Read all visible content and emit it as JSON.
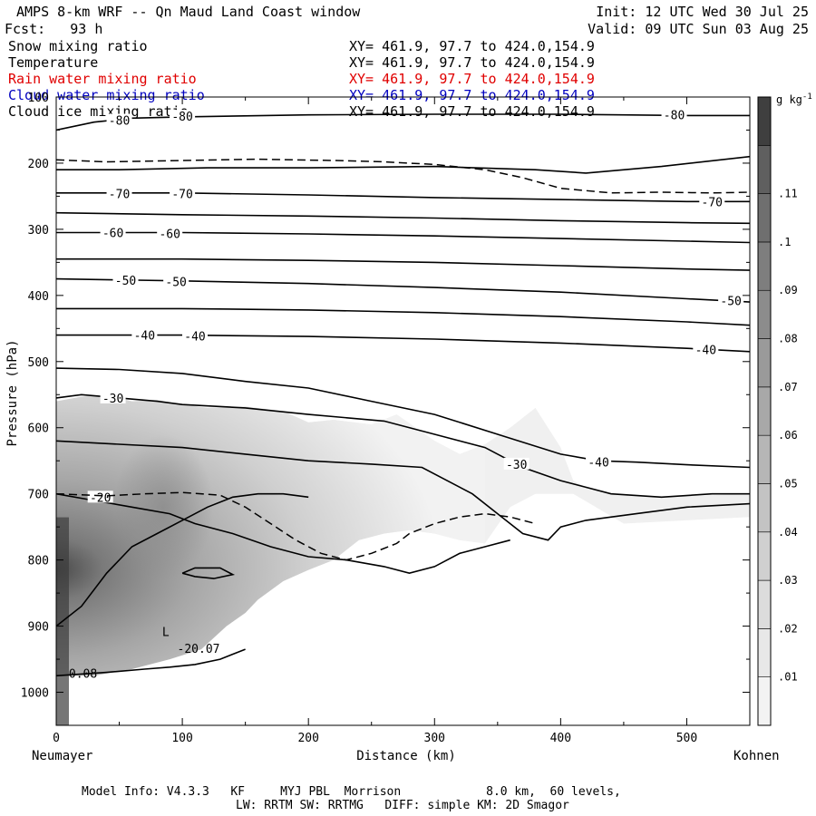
{
  "header": {
    "title": "AMPS 8-km WRF -- Qn Maud Land Coast window",
    "forecast": "Fcst:   93 h",
    "init": "Init: 12 UTC Wed 30 Jul 25",
    "valid": "Valid: 09 UTC Sun 03 Aug 25"
  },
  "fields": [
    {
      "name": "Snow mixing ratio",
      "xy": "XY= 461.9, 97.7 to 424.0,154.9",
      "color": "#000000"
    },
    {
      "name": "Temperature",
      "xy": "XY= 461.9, 97.7 to 424.0,154.9",
      "color": "#000000"
    },
    {
      "name": "Rain water mixing ratio",
      "xy": "XY= 461.9, 97.7 to 424.0,154.9",
      "color": "#e00000"
    },
    {
      "name": "Cloud water mixing ratio",
      "xy": "XY= 461.9, 97.7 to 424.0,154.9",
      "color": "#0000c0"
    },
    {
      "name": "Cloud ice mixing ratio",
      "xy": "XY= 461.9, 97.7 to 424.0,154.9",
      "color": "#000000"
    }
  ],
  "footer": {
    "line1": "Model Info: V4.3.3   KF     MYJ PBL  Morrison            8.0 km,  60 levels,",
    "line2": "LW: RRTM SW: RRTMG   DIFF: simple KM: 2D Smagor"
  },
  "chart_data": {
    "type": "cross-section",
    "xlabel": "Distance (km)",
    "ylabel": "Pressure (hPa)",
    "xlim": [
      0,
      550
    ],
    "ylim": [
      1050,
      100
    ],
    "x_ticks": [
      0,
      100,
      200,
      300,
      400,
      500
    ],
    "y_ticks": [
      100,
      200,
      300,
      400,
      500,
      600,
      700,
      800,
      900,
      1000
    ],
    "x_endpoints": {
      "left": "Neumayer",
      "right": "Kohnen"
    },
    "colorbar": {
      "unit": "g kg-1",
      "ticks": [
        ".01",
        ".02",
        ".03",
        ".04",
        ".05",
        ".06",
        ".07",
        ".08",
        ".09",
        ".1",
        ".11"
      ],
      "levels": [
        0.01,
        0.02,
        0.03,
        0.04,
        0.05,
        0.06,
        0.07,
        0.08,
        0.09,
        0.1,
        0.11,
        0.12
      ],
      "colors": [
        "#f3f3f3",
        "#e8e8e8",
        "#dcdcdc",
        "#d0d0d0",
        "#c3c3c3",
        "#b6b6b6",
        "#a8a8a8",
        "#9a9a9a",
        "#8c8c8c",
        "#7e7e7e",
        "#6f6f6f",
        "#5f5f5f",
        "#3f3f3f"
      ]
    },
    "snow_region": {
      "outline": [
        [
          0,
          560
        ],
        [
          20,
          553
        ],
        [
          40,
          551
        ],
        [
          60,
          560
        ],
        [
          80,
          558
        ],
        [
          100,
          565
        ],
        [
          120,
          570
        ],
        [
          150,
          568
        ],
        [
          180,
          575
        ],
        [
          200,
          592
        ],
        [
          220,
          588
        ],
        [
          250,
          595
        ],
        [
          270,
          580
        ],
        [
          300,
          620
        ],
        [
          320,
          640
        ],
        [
          340,
          625
        ],
        [
          360,
          600
        ],
        [
          380,
          570
        ],
        [
          400,
          630
        ],
        [
          410,
          680
        ],
        [
          420,
          690
        ],
        [
          440,
          700
        ],
        [
          480,
          705
        ],
        [
          550,
          700
        ],
        [
          550,
          735
        ],
        [
          500,
          740
        ],
        [
          450,
          745
        ],
        [
          410,
          700
        ],
        [
          380,
          700
        ],
        [
          360,
          720
        ],
        [
          340,
          775
        ],
        [
          320,
          770
        ],
        [
          300,
          760
        ],
        [
          280,
          755
        ],
        [
          260,
          760
        ],
        [
          240,
          770
        ],
        [
          220,
          800
        ],
        [
          200,
          815
        ],
        [
          180,
          832
        ],
        [
          160,
          860
        ],
        [
          150,
          880
        ],
        [
          135,
          900
        ],
        [
          115,
          935
        ],
        [
          90,
          950
        ],
        [
          60,
          965
        ],
        [
          30,
          975
        ],
        [
          0,
          975
        ]
      ],
      "core_center": [
        0,
        900
      ],
      "secondary_core": [
        85,
        720
      ]
    },
    "isotherms": [
      {
        "label": "-80",
        "points": [
          [
            0,
            150
          ],
          [
            30,
            138
          ],
          [
            60,
            132
          ],
          [
            100,
            130
          ],
          [
            200,
            127
          ],
          [
            300,
            126
          ],
          [
            400,
            126
          ],
          [
            500,
            128
          ],
          [
            550,
            128
          ]
        ],
        "labels_at": [
          [
            50,
            135
          ],
          [
            100,
            129
          ],
          [
            490,
            127
          ]
        ]
      },
      {
        "label": "",
        "points": [
          [
            0,
            210
          ],
          [
            50,
            210
          ],
          [
            120,
            207
          ],
          [
            200,
            207
          ],
          [
            300,
            205
          ],
          [
            380,
            210
          ],
          [
            420,
            215
          ],
          [
            480,
            205
          ],
          [
            550,
            190
          ]
        ],
        "labels_at": []
      },
      {
        "label": "-70",
        "points": [
          [
            0,
            245
          ],
          [
            100,
            245
          ],
          [
            200,
            248
          ],
          [
            300,
            252
          ],
          [
            400,
            255
          ],
          [
            500,
            258
          ],
          [
            550,
            258
          ]
        ],
        "labels_at": [
          [
            50,
            246
          ],
          [
            100,
            246
          ],
          [
            520,
            258
          ]
        ]
      },
      {
        "label": "",
        "points": [
          [
            0,
            275
          ],
          [
            100,
            278
          ],
          [
            200,
            280
          ],
          [
            300,
            283
          ],
          [
            400,
            287
          ],
          [
            500,
            290
          ],
          [
            550,
            291
          ]
        ],
        "labels_at": []
      },
      {
        "label": "-60",
        "points": [
          [
            0,
            305
          ],
          [
            100,
            305
          ],
          [
            200,
            307
          ],
          [
            300,
            310
          ],
          [
            400,
            314
          ],
          [
            500,
            318
          ],
          [
            550,
            320
          ]
        ],
        "labels_at": [
          [
            45,
            305
          ],
          [
            90,
            306
          ]
        ]
      },
      {
        "label": "",
        "points": [
          [
            0,
            345
          ],
          [
            100,
            345
          ],
          [
            200,
            347
          ],
          [
            300,
            350
          ],
          [
            400,
            355
          ],
          [
            500,
            360
          ],
          [
            550,
            362
          ]
        ],
        "labels_at": []
      },
      {
        "label": "-50",
        "points": [
          [
            0,
            375
          ],
          [
            100,
            378
          ],
          [
            200,
            382
          ],
          [
            300,
            388
          ],
          [
            400,
            395
          ],
          [
            500,
            405
          ],
          [
            550,
            410
          ]
        ],
        "labels_at": [
          [
            55,
            377
          ],
          [
            95,
            379
          ],
          [
            535,
            408
          ]
        ]
      },
      {
        "label": "",
        "points": [
          [
            0,
            420
          ],
          [
            100,
            420
          ],
          [
            200,
            422
          ],
          [
            300,
            426
          ],
          [
            400,
            432
          ],
          [
            500,
            440
          ],
          [
            550,
            445
          ]
        ],
        "labels_at": []
      },
      {
        "label": "-40",
        "points": [
          [
            0,
            460
          ],
          [
            100,
            460
          ],
          [
            200,
            462
          ],
          [
            300,
            466
          ],
          [
            400,
            472
          ],
          [
            500,
            480
          ],
          [
            550,
            485
          ]
        ],
        "labels_at": [
          [
            70,
            460
          ],
          [
            110,
            461
          ],
          [
            515,
            482
          ]
        ]
      },
      {
        "label": "-40",
        "points": [
          [
            0,
            510
          ],
          [
            50,
            512
          ],
          [
            100,
            518
          ],
          [
            150,
            530
          ],
          [
            200,
            540
          ],
          [
            250,
            560
          ],
          [
            300,
            580
          ],
          [
            350,
            610
          ],
          [
            400,
            640
          ],
          [
            430,
            650
          ],
          [
            460,
            652
          ],
          [
            500,
            656
          ],
          [
            550,
            660
          ]
        ],
        "labels_at": [
          [
            430,
            652
          ]
        ]
      },
      {
        "label": "-30",
        "points": [
          [
            0,
            555
          ],
          [
            20,
            550
          ],
          [
            50,
            555
          ],
          [
            80,
            560
          ],
          [
            100,
            565
          ],
          [
            150,
            570
          ],
          [
            200,
            580
          ],
          [
            260,
            590
          ],
          [
            300,
            610
          ],
          [
            340,
            630
          ],
          [
            370,
            660
          ],
          [
            400,
            680
          ],
          [
            420,
            690
          ],
          [
            440,
            700
          ],
          [
            480,
            705
          ],
          [
            520,
            700
          ],
          [
            550,
            700
          ]
        ],
        "labels_at": [
          [
            45,
            555
          ],
          [
            365,
            655
          ]
        ]
      },
      {
        "label": "",
        "points": [
          [
            0,
            620
          ],
          [
            50,
            625
          ],
          [
            100,
            630
          ],
          [
            150,
            640
          ],
          [
            200,
            650
          ],
          [
            250,
            655
          ],
          [
            290,
            660
          ],
          [
            330,
            700
          ],
          [
            350,
            730
          ],
          [
            370,
            760
          ],
          [
            390,
            770
          ],
          [
            400,
            750
          ],
          [
            420,
            740
          ],
          [
            460,
            730
          ],
          [
            500,
            720
          ],
          [
            550,
            715
          ]
        ],
        "labels_at": []
      },
      {
        "label": "-20",
        "points": [
          [
            0,
            700
          ],
          [
            30,
            710
          ],
          [
            60,
            720
          ],
          [
            90,
            730
          ],
          [
            110,
            745
          ],
          [
            140,
            760
          ],
          [
            170,
            780
          ],
          [
            200,
            795
          ],
          [
            230,
            800
          ],
          [
            260,
            810
          ],
          [
            280,
            820
          ],
          [
            300,
            810
          ],
          [
            320,
            790
          ],
          [
            340,
            780
          ],
          [
            360,
            770
          ]
        ],
        "labels_at": [
          [
            35,
            705
          ]
        ]
      },
      {
        "label": "",
        "points": [
          [
            0,
            900
          ],
          [
            20,
            870
          ],
          [
            40,
            820
          ],
          [
            60,
            780
          ],
          [
            80,
            760
          ],
          [
            100,
            740
          ],
          [
            120,
            720
          ],
          [
            140,
            705
          ],
          [
            160,
            700
          ],
          [
            180,
            700
          ],
          [
            200,
            705
          ]
        ],
        "labels_at": []
      },
      {
        "label": "",
        "points": [
          [
            100,
            820
          ],
          [
            110,
            825
          ],
          [
            125,
            828
          ],
          [
            140,
            822
          ],
          [
            130,
            812
          ],
          [
            110,
            812
          ],
          [
            100,
            820
          ]
        ],
        "labels_at": []
      },
      {
        "label": "",
        "points": [
          [
            0,
            975
          ],
          [
            40,
            970
          ],
          [
            70,
            965
          ],
          [
            90,
            962
          ],
          [
            110,
            958
          ],
          [
            130,
            950
          ],
          [
            150,
            935
          ]
        ],
        "labels_at": []
      }
    ],
    "dashed_contours": [
      {
        "points": [
          [
            0,
            195
          ],
          [
            40,
            198
          ],
          [
            100,
            196
          ],
          [
            160,
            194
          ],
          [
            220,
            196
          ],
          [
            260,
            198
          ],
          [
            300,
            202
          ],
          [
            340,
            210
          ],
          [
            370,
            222
          ],
          [
            400,
            238
          ],
          [
            440,
            245
          ],
          [
            480,
            244
          ],
          [
            520,
            245
          ],
          [
            550,
            244
          ]
        ]
      },
      {
        "points": [
          [
            0,
            700
          ],
          [
            40,
            703
          ],
          [
            70,
            700
          ],
          [
            100,
            698
          ],
          [
            130,
            702
          ],
          [
            150,
            720
          ],
          [
            170,
            745
          ],
          [
            190,
            770
          ],
          [
            210,
            790
          ],
          [
            230,
            800
          ],
          [
            250,
            790
          ],
          [
            270,
            775
          ],
          [
            280,
            760
          ],
          [
            300,
            745
          ],
          [
            320,
            735
          ],
          [
            340,
            730
          ],
          [
            360,
            735
          ],
          [
            380,
            745
          ]
        ]
      }
    ],
    "annotations": [
      {
        "text": "L",
        "x": 84,
        "y": 915
      },
      {
        "text": "-20.07",
        "x": 96,
        "y": 940
      },
      {
        "text": "0.08",
        "x": 10,
        "y": 978
      }
    ]
  }
}
